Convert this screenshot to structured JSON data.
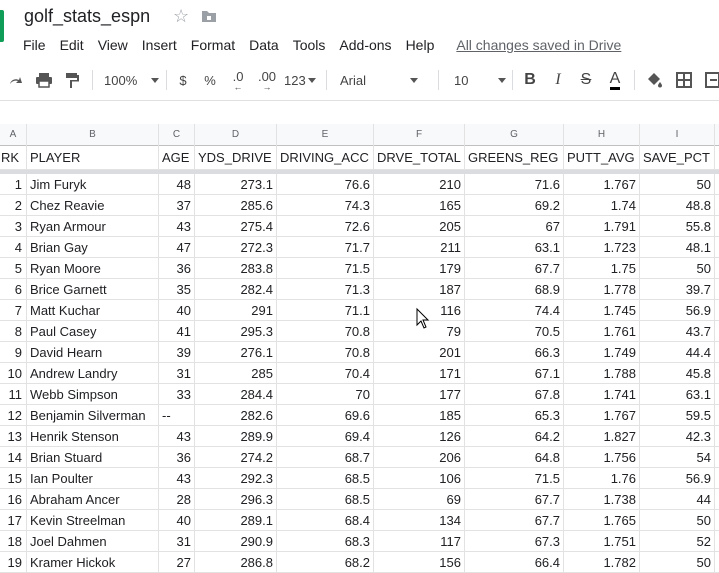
{
  "title": "golf_stats_espn",
  "menu": [
    "File",
    "Edit",
    "View",
    "Insert",
    "Format",
    "Data",
    "Tools",
    "Add-ons",
    "Help"
  ],
  "save_status": "All changes saved in Drive",
  "toolbar": {
    "zoom": "100%",
    "currency": "$",
    "percent": "%",
    "decrease_decimal": ".0",
    "increase_decimal": ".00",
    "more_formats": "123",
    "font": "Arial",
    "font_size": "10",
    "bold": "B",
    "italic": "I",
    "strike": "S",
    "text_color": "A"
  },
  "column_letters": [
    "A",
    "B",
    "C",
    "D",
    "E",
    "F",
    "G",
    "H",
    "I"
  ],
  "headers": [
    "RK",
    "PLAYER",
    "AGE",
    "YDS_DRIVE",
    "DRIVING_ACC",
    "DRVE_TOTAL",
    "GREENS_REG",
    "PUTT_AVG",
    "SAVE_PCT"
  ],
  "rows": [
    [
      "1",
      "Jim Furyk",
      "48",
      "273.1",
      "76.6",
      "210",
      "71.6",
      "1.767",
      "50"
    ],
    [
      "2",
      "Chez Reavie",
      "37",
      "285.6",
      "74.3",
      "165",
      "69.2",
      "1.74",
      "48.8"
    ],
    [
      "3",
      "Ryan Armour",
      "43",
      "275.4",
      "72.6",
      "205",
      "67",
      "1.791",
      "55.8"
    ],
    [
      "4",
      "Brian Gay",
      "47",
      "272.3",
      "71.7",
      "211",
      "63.1",
      "1.723",
      "48.1"
    ],
    [
      "5",
      "Ryan Moore",
      "36",
      "283.8",
      "71.5",
      "179",
      "67.7",
      "1.75",
      "50"
    ],
    [
      "6",
      "Brice Garnett",
      "35",
      "282.4",
      "71.3",
      "187",
      "68.9",
      "1.778",
      "39.7"
    ],
    [
      "7",
      "Matt Kuchar",
      "40",
      "291",
      "71.1",
      "116",
      "74.4",
      "1.745",
      "56.9"
    ],
    [
      "8",
      "Paul Casey",
      "41",
      "295.3",
      "70.8",
      "79",
      "70.5",
      "1.761",
      "43.7"
    ],
    [
      "9",
      "David Hearn",
      "39",
      "276.1",
      "70.8",
      "201",
      "66.3",
      "1.749",
      "44.4"
    ],
    [
      "10",
      "Andrew Landry",
      "31",
      "285",
      "70.4",
      "171",
      "67.1",
      "1.788",
      "45.8"
    ],
    [
      "11",
      "Webb Simpson",
      "33",
      "284.4",
      "70",
      "177",
      "67.8",
      "1.741",
      "63.1"
    ],
    [
      "12",
      "Benjamin Silverman",
      "--",
      "282.6",
      "69.6",
      "185",
      "65.3",
      "1.767",
      "59.5"
    ],
    [
      "13",
      "Henrik Stenson",
      "43",
      "289.9",
      "69.4",
      "126",
      "64.2",
      "1.827",
      "42.3"
    ],
    [
      "14",
      "Brian Stuard",
      "36",
      "274.2",
      "68.7",
      "206",
      "64.8",
      "1.756",
      "54"
    ],
    [
      "15",
      "Ian Poulter",
      "43",
      "292.3",
      "68.5",
      "106",
      "71.5",
      "1.76",
      "56.9"
    ],
    [
      "16",
      "Abraham Ancer",
      "28",
      "296.3",
      "68.5",
      "69",
      "67.7",
      "1.738",
      "44"
    ],
    [
      "17",
      "Kevin Streelman",
      "40",
      "289.1",
      "68.4",
      "134",
      "67.7",
      "1.765",
      "50"
    ],
    [
      "18",
      "Joel Dahmen",
      "31",
      "290.9",
      "68.3",
      "117",
      "67.3",
      "1.751",
      "52"
    ],
    [
      "19",
      "Kramer Hickok",
      "27",
      "286.8",
      "68.2",
      "156",
      "66.4",
      "1.782",
      "50"
    ]
  ],
  "colors": {
    "accent_underline": "#000000",
    "header_bg": "#f8f9fa",
    "grid_line": "#e2e2e2"
  },
  "icons": [
    "undo-icon",
    "redo-icon",
    "print-icon",
    "paint-format-icon",
    "star-icon",
    "folder-icon",
    "fill-color-icon",
    "borders-icon",
    "merge-cells-icon"
  ]
}
